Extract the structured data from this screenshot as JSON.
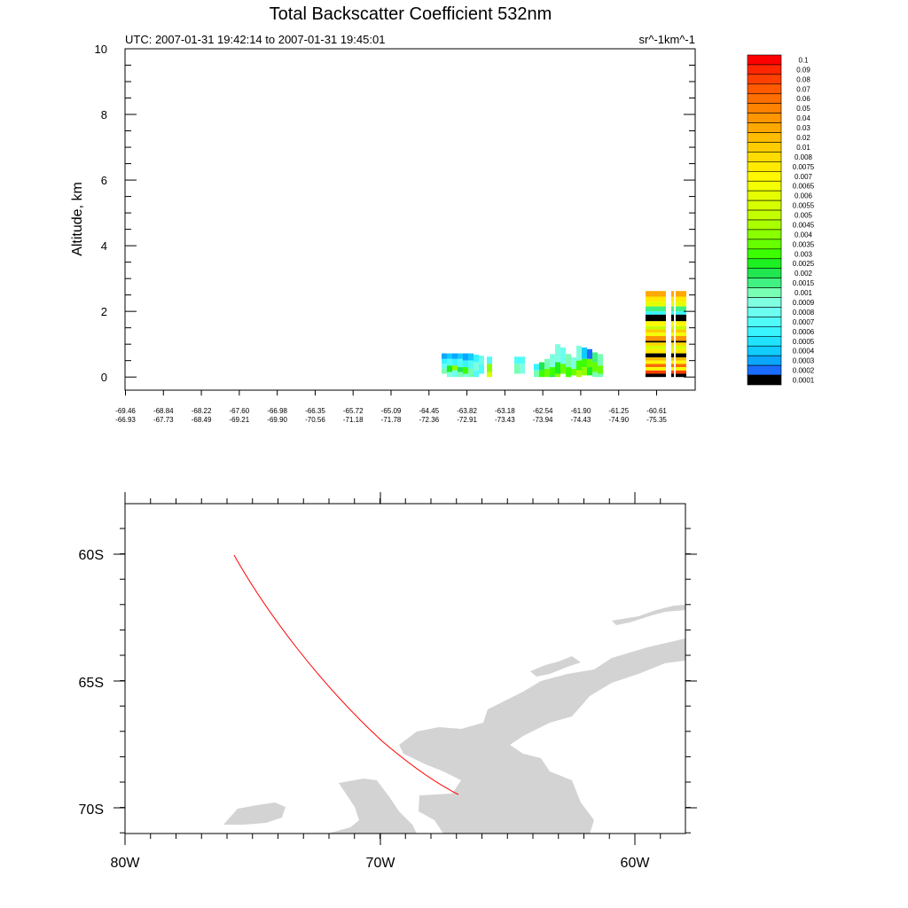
{
  "chart_data": [
    {
      "type": "heatmap",
      "title": "Total Backscatter Coefficient 532nm",
      "subtitle_left": "UTC: 2007-01-31 19:42:14 to 2007-01-31 19:45:01",
      "subtitle_right": "sr^-1km^-1",
      "ylabel": "Altitude, km",
      "ylim": [
        -0.4,
        10
      ],
      "yticks": [
        "0",
        "2",
        "4",
        "6",
        "8",
        "10"
      ],
      "xtick_labels_lat": [
        "-69.46",
        "-68.84",
        "-68.22",
        "-67.60",
        "-66.98",
        "-66.35",
        "-65.72",
        "-65.09",
        "-64.45",
        "-63.82",
        "-63.18",
        "-62.54",
        "-61.90",
        "-61.25",
        "-60.61"
      ],
      "xtick_labels_lon": [
        "-66.93",
        "-67.73",
        "-68.49",
        "-69.21",
        "-69.90",
        "-70.56",
        "-71.18",
        "-71.78",
        "-72.36",
        "-72.91",
        "-73.43",
        "-73.94",
        "-74.43",
        "-74.90",
        "-75.35"
      ],
      "colorbar": {
        "labels": [
          "0.1",
          "0.09",
          "0.08",
          "0.07",
          "0.06",
          "0.05",
          "0.04",
          "0.03",
          "0.02",
          "0.01",
          "0.008",
          "0.0075",
          "0.007",
          "0.0065",
          "0.006",
          "0.0055",
          "0.005",
          "0.0045",
          "0.004",
          "0.0035",
          "0.003",
          "0.0025",
          "0.002",
          "0.0015",
          "0.001",
          "0.0009",
          "0.0008",
          "0.0007",
          "0.0006",
          "0.0005",
          "0.0004",
          "0.0003",
          "0.0002",
          "0.0001"
        ],
        "colors": [
          "#ff0000",
          "#ff2600",
          "#ff4000",
          "#ff5a00",
          "#ff6e00",
          "#ff8200",
          "#ff9600",
          "#ffa800",
          "#ffbc00",
          "#ffcc00",
          "#ffdc00",
          "#ffea00",
          "#fff800",
          "#f4ff00",
          "#e6ff00",
          "#d6ff00",
          "#c4ff00",
          "#aaff00",
          "#8aff00",
          "#66ff00",
          "#3cff00",
          "#1cf020",
          "#20e650",
          "#40f080",
          "#78ffb4",
          "#80ffe0",
          "#6cfff0",
          "#50fcf8",
          "#38f4ff",
          "#20e4ff",
          "#10ccff",
          "#0aa6ff",
          "#1a6cff",
          "#000000"
        ]
      }
    },
    {
      "type": "map",
      "lat_labels": [
        "60S",
        "65S",
        "70S"
      ],
      "lon_labels": [
        "80W",
        "70W",
        "60W"
      ],
      "track_color": "#ff0000",
      "land_color": "#d3d3d3"
    }
  ]
}
